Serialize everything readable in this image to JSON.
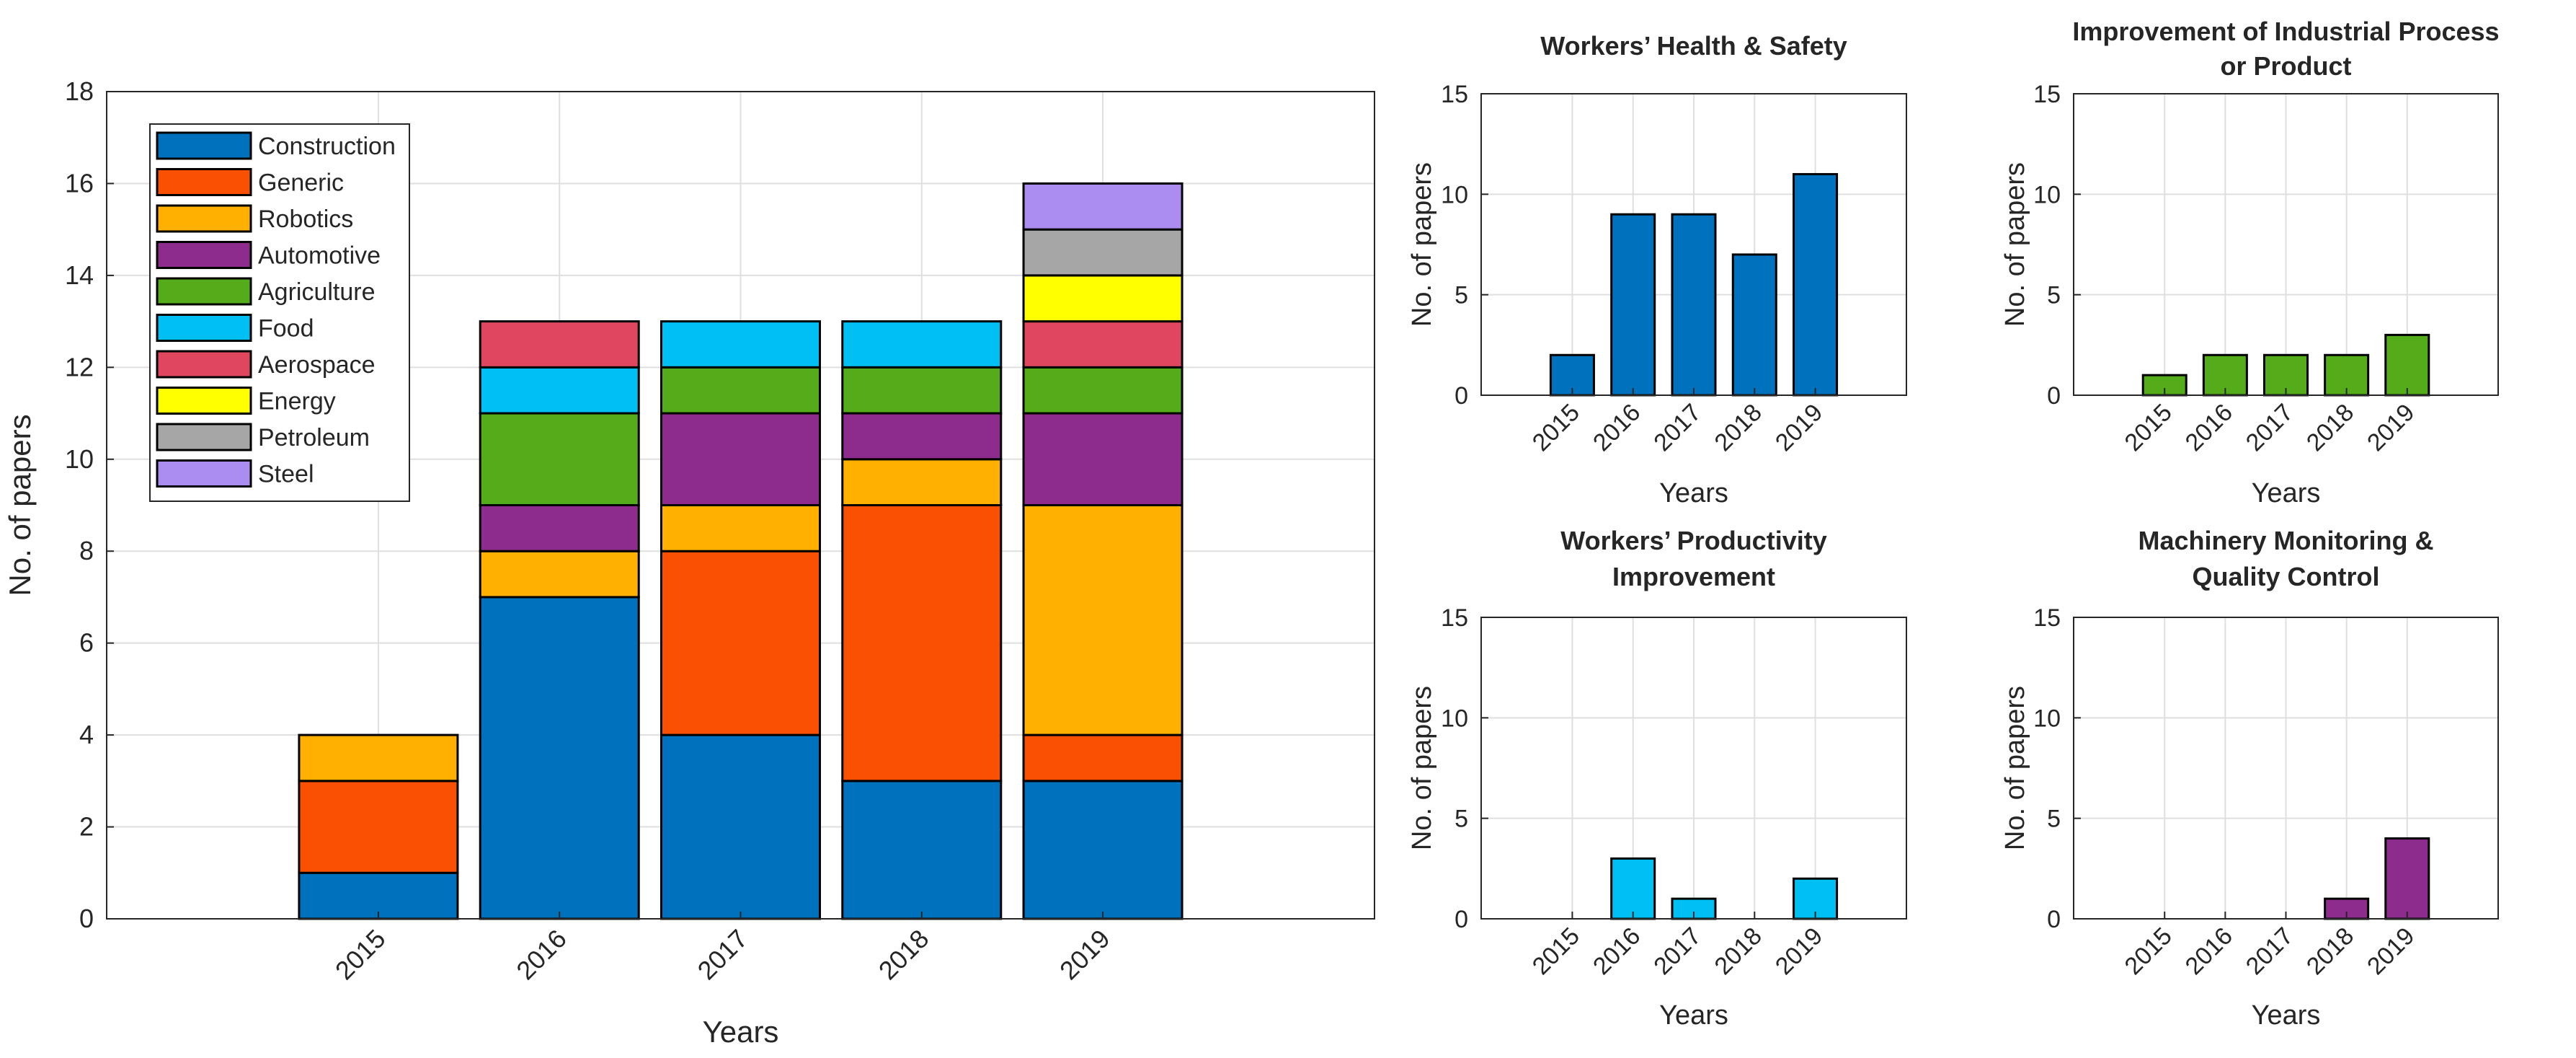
{
  "chart_data": [
    {
      "id": "main",
      "type": "bar",
      "stacked": true,
      "title": "",
      "xlabel": "Years",
      "ylabel": "No. of papers",
      "categories": [
        "2015",
        "2016",
        "2017",
        "2018",
        "2019"
      ],
      "ylim": [
        0,
        18
      ],
      "yticks": [
        0,
        2,
        4,
        6,
        8,
        10,
        12,
        14,
        16,
        18
      ],
      "grid": true,
      "legend_position": "top-left",
      "series": [
        {
          "name": "Construction",
          "color": "#0072BD",
          "values": [
            1,
            7,
            4,
            3,
            3
          ]
        },
        {
          "name": "Generic",
          "color": "#F95002",
          "values": [
            2,
            0,
            4,
            6,
            1
          ]
        },
        {
          "name": "Robotics",
          "color": "#FFB000",
          "values": [
            1,
            1,
            1,
            1,
            5
          ]
        },
        {
          "name": "Automotive",
          "color": "#8E2C8E",
          "values": [
            0,
            1,
            2,
            1,
            2
          ]
        },
        {
          "name": "Agriculture",
          "color": "#54AC1B",
          "values": [
            0,
            2,
            1,
            1,
            1
          ]
        },
        {
          "name": "Food",
          "color": "#00BFF3",
          "values": [
            0,
            1,
            1,
            1,
            0
          ]
        },
        {
          "name": "Aerospace",
          "color": "#E1465F",
          "values": [
            0,
            1,
            0,
            0,
            1
          ]
        },
        {
          "name": "Energy",
          "color": "#FFFF00",
          "values": [
            0,
            0,
            0,
            0,
            1
          ]
        },
        {
          "name": "Petroleum",
          "color": "#A6A6A6",
          "values": [
            0,
            0,
            0,
            0,
            1
          ]
        },
        {
          "name": "Steel",
          "color": "#AB8CF0",
          "values": [
            0,
            0,
            0,
            0,
            1
          ]
        }
      ]
    },
    {
      "id": "health",
      "type": "bar",
      "title": "Workers’ Health & Safety",
      "xlabel": "Years",
      "ylabel": "No. of papers",
      "categories": [
        "2015",
        "2016",
        "2017",
        "2018",
        "2019"
      ],
      "values": [
        2,
        9,
        9,
        7,
        11
      ],
      "color": "#0072BD",
      "ylim": [
        0,
        15
      ],
      "yticks": [
        0,
        5,
        10,
        15
      ],
      "grid": true
    },
    {
      "id": "process",
      "type": "bar",
      "title": "Improvement of Industrial Process or Product",
      "xlabel": "Years",
      "ylabel": "No. of papers",
      "categories": [
        "2015",
        "2016",
        "2017",
        "2018",
        "2019"
      ],
      "values": [
        1,
        2,
        2,
        2,
        3
      ],
      "color": "#54AC1B",
      "ylim": [
        0,
        15
      ],
      "yticks": [
        0,
        5,
        10,
        15
      ],
      "grid": true
    },
    {
      "id": "productivity",
      "type": "bar",
      "title": "Workers’ Productivity Improvement",
      "xlabel": "Years",
      "ylabel": "No. of papers",
      "categories": [
        "2015",
        "2016",
        "2017",
        "2018",
        "2019"
      ],
      "values": [
        0,
        3,
        1,
        0,
        2
      ],
      "color": "#00BFF3",
      "ylim": [
        0,
        15
      ],
      "yticks": [
        0,
        5,
        10,
        15
      ],
      "grid": true
    },
    {
      "id": "machinery",
      "type": "bar",
      "title": "Machinery Monitoring & Quality Control",
      "xlabel": "Years",
      "ylabel": "No. of papers",
      "categories": [
        "2015",
        "2016",
        "2017",
        "2018",
        "2019"
      ],
      "values": [
        0,
        0,
        0,
        1,
        4
      ],
      "color": "#8E2C8E",
      "ylim": [
        0,
        15
      ],
      "yticks": [
        0,
        5,
        10,
        15
      ],
      "grid": true
    }
  ]
}
